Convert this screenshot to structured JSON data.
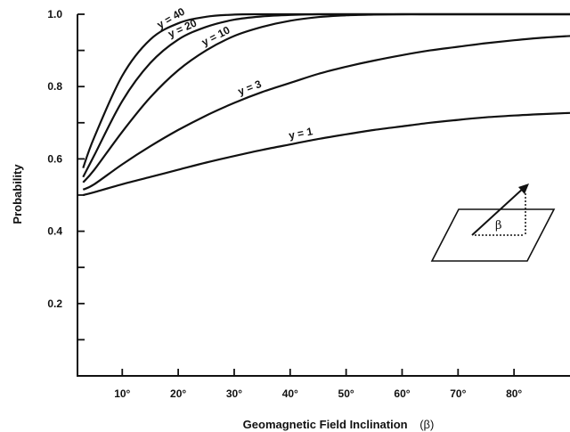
{
  "chart_data": {
    "type": "line",
    "title": "",
    "xlabel": "Geomagnetic Field Inclination",
    "xlabel_symbol": "(β)",
    "ylabel": "Probability",
    "xlim": [
      2,
      90
    ],
    "ylim": [
      0,
      1.0
    ],
    "x_ticks": [
      10,
      20,
      30,
      40,
      50,
      60,
      70,
      80
    ],
    "x_tick_labels": [
      "10°",
      "20°",
      "30°",
      "40°",
      "50°",
      "60°",
      "70°",
      "80°"
    ],
    "y_ticks": [
      0.2,
      0.4,
      0.6,
      0.8,
      1.0
    ],
    "y_tick_labels": [
      "0.2",
      "0.4",
      "0.6",
      "0.8",
      "1.0"
    ],
    "y_minor_ticks": [
      0.1,
      0.3,
      0.5,
      0.7,
      0.9
    ],
    "grid": false,
    "x": [
      3,
      5,
      10,
      15,
      20,
      25,
      30,
      35,
      40,
      45,
      50,
      55,
      60,
      65,
      70,
      75,
      80,
      85,
      90
    ],
    "series": [
      {
        "name": "y = 40",
        "values": [
          0.575,
          0.66,
          0.83,
          0.93,
          0.975,
          0.993,
          0.999,
          1.0,
          1.0,
          1.0,
          1.0,
          1.0,
          1.0,
          1.0,
          1.0,
          1.0,
          1.0,
          1.0,
          1.0
        ]
      },
      {
        "name": "y = 20",
        "values": [
          0.55,
          0.61,
          0.76,
          0.865,
          0.93,
          0.965,
          0.985,
          0.994,
          0.998,
          1.0,
          1.0,
          1.0,
          1.0,
          1.0,
          1.0,
          1.0,
          1.0,
          1.0,
          1.0
        ]
      },
      {
        "name": "y = 10",
        "values": [
          0.535,
          0.57,
          0.675,
          0.77,
          0.845,
          0.9,
          0.94,
          0.965,
          0.982,
          0.992,
          0.997,
          0.999,
          1.0,
          1.0,
          1.0,
          1.0,
          1.0,
          1.0,
          1.0
        ]
      },
      {
        "name": "y = 3",
        "values": [
          0.515,
          0.53,
          0.585,
          0.635,
          0.68,
          0.72,
          0.755,
          0.785,
          0.81,
          0.835,
          0.855,
          0.872,
          0.887,
          0.9,
          0.91,
          0.92,
          0.928,
          0.935,
          0.94
        ]
      },
      {
        "name": "y = 1",
        "values": [
          0.5,
          0.508,
          0.53,
          0.55,
          0.57,
          0.59,
          0.608,
          0.625,
          0.64,
          0.655,
          0.668,
          0.68,
          0.69,
          0.7,
          0.708,
          0.715,
          0.72,
          0.724,
          0.727
        ]
      }
    ],
    "inset_label": "β"
  }
}
